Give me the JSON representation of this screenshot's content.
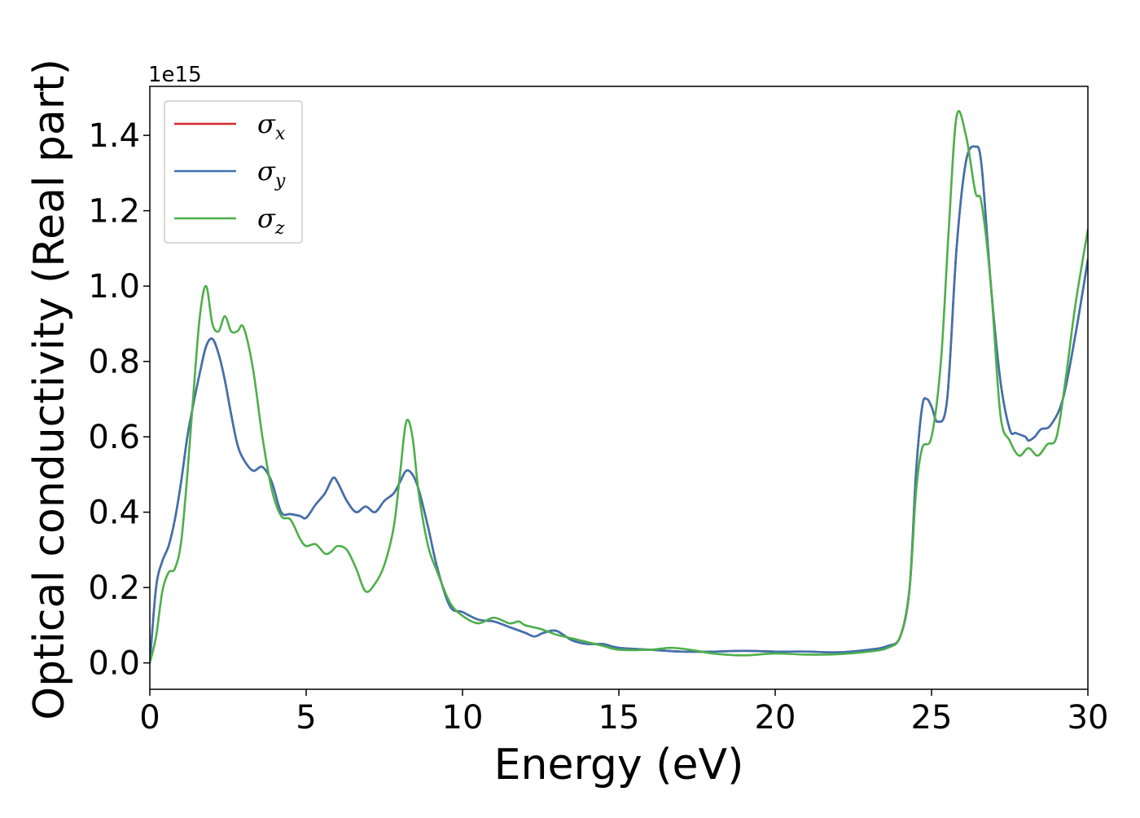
{
  "chart_data": {
    "type": "line",
    "xlabel": "Energy (eV)",
    "ylabel": "Optical conductivity (Real part)",
    "y_offset_label": "1e15",
    "xlim": [
      0,
      30
    ],
    "ylim": [
      -0.07,
      1.53
    ],
    "x_ticks": [
      0,
      5,
      10,
      15,
      20,
      25,
      30
    ],
    "x_tick_labels": [
      "0",
      "5",
      "10",
      "15",
      "20",
      "25",
      "30"
    ],
    "y_ticks": [
      0.0,
      0.2,
      0.4,
      0.6,
      0.8,
      1.0,
      1.2,
      1.4
    ],
    "y_tick_labels": [
      "0.0",
      "0.2",
      "0.4",
      "0.6",
      "0.8",
      "1.0",
      "1.2",
      "1.4"
    ],
    "grid": false,
    "legend_position": "top-left",
    "series": [
      {
        "name": "σx",
        "base": "σ",
        "sub": "x",
        "color": "#d62728",
        "x": [
          0,
          0.2,
          0.4,
          0.6,
          0.8,
          1.0,
          1.2,
          1.4,
          1.6,
          1.8,
          2.0,
          2.2,
          2.4,
          2.6,
          2.8,
          3.0,
          3.3,
          3.6,
          3.9,
          4.2,
          4.5,
          4.8,
          5.0,
          5.3,
          5.6,
          5.85,
          6.0,
          6.3,
          6.6,
          6.9,
          7.2,
          7.5,
          7.8,
          8.0,
          8.2,
          8.4,
          8.6,
          8.9,
          9.2,
          9.6,
          10.0,
          10.5,
          11.0,
          11.5,
          12.0,
          12.3,
          12.6,
          13.0,
          13.5,
          14.0,
          14.5,
          15.0,
          16.0,
          17.0,
          18.0,
          19.0,
          20.0,
          21.0,
          22.0,
          23.0,
          23.6,
          24.0,
          24.3,
          24.5,
          24.7,
          24.85,
          25.0,
          25.2,
          25.5,
          25.8,
          26.1,
          26.4,
          26.6,
          26.9,
          27.2,
          27.5,
          27.7,
          28.0,
          28.1,
          28.3,
          28.5,
          28.8,
          29.2,
          29.6,
          30.0
        ],
        "y": [
          0.0,
          0.2,
          0.27,
          0.31,
          0.38,
          0.48,
          0.6,
          0.69,
          0.77,
          0.84,
          0.86,
          0.82,
          0.75,
          0.66,
          0.58,
          0.54,
          0.51,
          0.52,
          0.48,
          0.4,
          0.395,
          0.39,
          0.385,
          0.42,
          0.45,
          0.49,
          0.48,
          0.43,
          0.4,
          0.415,
          0.4,
          0.43,
          0.45,
          0.48,
          0.51,
          0.5,
          0.46,
          0.36,
          0.25,
          0.15,
          0.135,
          0.115,
          0.11,
          0.095,
          0.08,
          0.07,
          0.08,
          0.085,
          0.06,
          0.05,
          0.05,
          0.04,
          0.035,
          0.03,
          0.03,
          0.032,
          0.03,
          0.03,
          0.028,
          0.035,
          0.045,
          0.07,
          0.2,
          0.5,
          0.68,
          0.7,
          0.68,
          0.64,
          0.7,
          1.1,
          1.33,
          1.37,
          1.32,
          1.0,
          0.75,
          0.62,
          0.61,
          0.6,
          0.59,
          0.6,
          0.62,
          0.63,
          0.7,
          0.87,
          1.07
        ]
      },
      {
        "name": "σy",
        "base": "σ",
        "sub": "y",
        "color": "#3f72af",
        "x": [
          0,
          0.2,
          0.4,
          0.6,
          0.8,
          1.0,
          1.2,
          1.4,
          1.6,
          1.8,
          2.0,
          2.2,
          2.4,
          2.6,
          2.8,
          3.0,
          3.3,
          3.6,
          3.9,
          4.2,
          4.5,
          4.8,
          5.0,
          5.3,
          5.6,
          5.85,
          6.0,
          6.3,
          6.6,
          6.9,
          7.2,
          7.5,
          7.8,
          8.0,
          8.2,
          8.4,
          8.6,
          8.9,
          9.2,
          9.6,
          10.0,
          10.5,
          11.0,
          11.5,
          12.0,
          12.3,
          12.6,
          13.0,
          13.5,
          14.0,
          14.5,
          15.0,
          16.0,
          17.0,
          18.0,
          19.0,
          20.0,
          21.0,
          22.0,
          23.0,
          23.6,
          24.0,
          24.3,
          24.5,
          24.7,
          24.85,
          25.0,
          25.2,
          25.5,
          25.8,
          26.1,
          26.4,
          26.6,
          26.9,
          27.2,
          27.5,
          27.7,
          28.0,
          28.1,
          28.3,
          28.5,
          28.8,
          29.2,
          29.6,
          30.0
        ],
        "y": [
          0.0,
          0.2,
          0.27,
          0.31,
          0.38,
          0.48,
          0.6,
          0.69,
          0.77,
          0.84,
          0.86,
          0.82,
          0.75,
          0.66,
          0.58,
          0.54,
          0.51,
          0.52,
          0.48,
          0.4,
          0.395,
          0.39,
          0.385,
          0.42,
          0.45,
          0.49,
          0.48,
          0.43,
          0.4,
          0.415,
          0.4,
          0.43,
          0.45,
          0.48,
          0.51,
          0.5,
          0.46,
          0.36,
          0.25,
          0.15,
          0.135,
          0.115,
          0.11,
          0.095,
          0.08,
          0.07,
          0.08,
          0.085,
          0.06,
          0.05,
          0.05,
          0.04,
          0.035,
          0.03,
          0.03,
          0.032,
          0.03,
          0.03,
          0.028,
          0.035,
          0.045,
          0.07,
          0.2,
          0.5,
          0.68,
          0.7,
          0.68,
          0.64,
          0.7,
          1.1,
          1.33,
          1.37,
          1.32,
          1.0,
          0.75,
          0.62,
          0.61,
          0.6,
          0.59,
          0.6,
          0.62,
          0.63,
          0.7,
          0.87,
          1.07
        ]
      },
      {
        "name": "σz",
        "base": "σ",
        "sub": "z",
        "color": "#4daf4a",
        "x": [
          0,
          0.2,
          0.4,
          0.6,
          0.8,
          1.0,
          1.2,
          1.4,
          1.6,
          1.8,
          2.0,
          2.2,
          2.4,
          2.6,
          2.8,
          3.0,
          3.3,
          3.6,
          3.9,
          4.2,
          4.5,
          4.8,
          5.0,
          5.3,
          5.6,
          5.8,
          6.0,
          6.3,
          6.6,
          6.9,
          7.2,
          7.5,
          7.8,
          8.0,
          8.2,
          8.4,
          8.6,
          8.9,
          9.2,
          9.6,
          10.0,
          10.5,
          11.0,
          11.5,
          11.8,
          12.0,
          12.5,
          13.0,
          13.5,
          14.0,
          14.5,
          15.0,
          16.0,
          16.7,
          17.5,
          18.0,
          19.0,
          20.0,
          21.0,
          22.0,
          23.0,
          23.6,
          24.0,
          24.3,
          24.5,
          24.7,
          25.0,
          25.3,
          25.55,
          25.8,
          26.1,
          26.4,
          26.6,
          26.9,
          27.2,
          27.5,
          27.8,
          28.1,
          28.4,
          28.7,
          29.0,
          29.3,
          29.6,
          30.0
        ],
        "y": [
          0.0,
          0.07,
          0.19,
          0.24,
          0.25,
          0.32,
          0.5,
          0.72,
          0.92,
          1.0,
          0.9,
          0.88,
          0.92,
          0.88,
          0.88,
          0.89,
          0.78,
          0.6,
          0.46,
          0.39,
          0.38,
          0.33,
          0.31,
          0.315,
          0.29,
          0.295,
          0.31,
          0.3,
          0.25,
          0.19,
          0.21,
          0.26,
          0.36,
          0.5,
          0.64,
          0.6,
          0.45,
          0.31,
          0.24,
          0.16,
          0.125,
          0.105,
          0.12,
          0.105,
          0.11,
          0.1,
          0.09,
          0.075,
          0.065,
          0.055,
          0.045,
          0.035,
          0.035,
          0.04,
          0.032,
          0.025,
          0.02,
          0.025,
          0.022,
          0.023,
          0.03,
          0.04,
          0.07,
          0.2,
          0.45,
          0.57,
          0.6,
          0.8,
          1.15,
          1.45,
          1.4,
          1.25,
          1.22,
          1.0,
          0.66,
          0.59,
          0.55,
          0.57,
          0.55,
          0.58,
          0.6,
          0.76,
          0.95,
          1.15
        ]
      }
    ]
  }
}
